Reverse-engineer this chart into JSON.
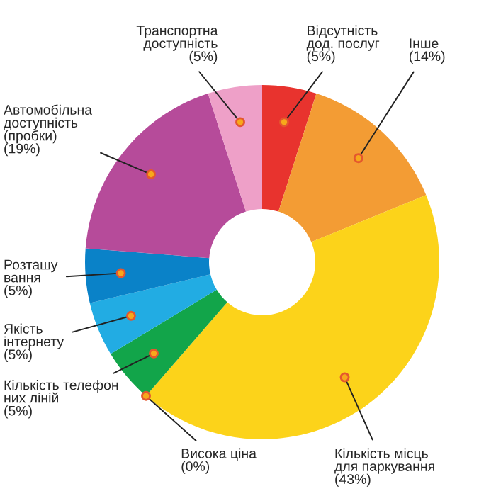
{
  "chart_data": {
    "type": "donut",
    "categories": [
      "Відсутність\nдод. послуг",
      "Інше",
      "Кількість місць\nдля паркування",
      "Висока ціна",
      "Кількість телефон\nних ліній",
      "Якість\nінтернету",
      "Розташу\nвання",
      "Автомобільна\nдоступність\n(пробки)",
      "Транспортна\nдоступність"
    ],
    "values": [
      5,
      14,
      43,
      0,
      5,
      5,
      5,
      19,
      5
    ],
    "value_labels": [
      "(5%)",
      "(14%)",
      "(43%)",
      "(0%)",
      "(5%)",
      "(5%)",
      "(5%)",
      "(19%)",
      "(5%)"
    ],
    "colors": [
      "#e8332e",
      "#f39c34",
      "#fcd31a",
      "#fcd31a",
      "#12a54a",
      "#22ace3",
      "#0a82c8",
      "#b64b9a",
      "#eea0c8"
    ]
  }
}
